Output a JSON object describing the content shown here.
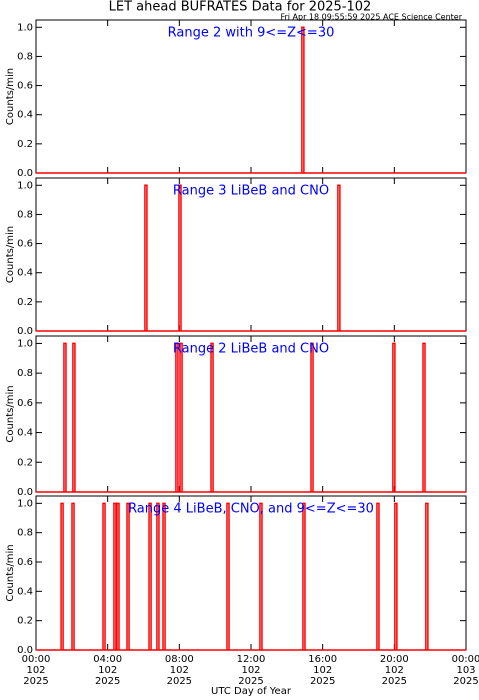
{
  "title": "LET ahead BUFRATES Data for 2025-102",
  "timestamp": "Fri Apr 18 09:55:59 2025 ACE Science Center",
  "x_label": "UTC Day of Year",
  "chart_data": [
    {
      "type": "spike",
      "title": "Range 2 with 9<=Z<=30",
      "y_label": "Counts/min",
      "color": "#ff0000",
      "x": [
        14.84
      ],
      "values": [
        1
      ],
      "xlim": [
        0,
        24
      ],
      "ylim": [
        0,
        1.05
      ],
      "yticks": [
        {
          "value": 0,
          "label": "0.0"
        },
        {
          "value": 0.2,
          "label": "0.2"
        },
        {
          "value": 0.4,
          "label": "0.4"
        },
        {
          "value": 0.6,
          "label": "0.6"
        },
        {
          "value": 0.8,
          "label": "0.8"
        },
        {
          "value": 1,
          "label": "1.0"
        }
      ]
    },
    {
      "type": "spike",
      "title": "Range 3 LiBeB and CNO",
      "y_label": "Counts/min",
      "color": "#ff0000",
      "x": [
        6.08,
        7.98,
        16.85
      ],
      "values": [
        1,
        1,
        1
      ],
      "xlim": [
        0,
        24
      ],
      "ylim": [
        0,
        1.05
      ],
      "yticks": [
        {
          "value": 0,
          "label": "0.0"
        },
        {
          "value": 0.2,
          "label": "0.2"
        },
        {
          "value": 0.4,
          "label": "0.4"
        },
        {
          "value": 0.6,
          "label": "0.6"
        },
        {
          "value": 0.8,
          "label": "0.8"
        },
        {
          "value": 1,
          "label": "1.0"
        }
      ]
    },
    {
      "type": "spike",
      "title": "Range 2 LiBeB and CNO",
      "y_label": "Counts/min",
      "color": "#ff0000",
      "x": [
        1.56,
        2.06,
        7.81,
        8.04,
        9.77,
        15.35,
        19.92,
        21.6
      ],
      "values": [
        1,
        1,
        1,
        1,
        1,
        1,
        1,
        1
      ],
      "xlim": [
        0,
        24
      ],
      "ylim": [
        0,
        1.05
      ],
      "yticks": [
        {
          "value": 0,
          "label": "0.0"
        },
        {
          "value": 0.2,
          "label": "0.2"
        },
        {
          "value": 0.4,
          "label": "0.4"
        },
        {
          "value": 0.6,
          "label": "0.6"
        },
        {
          "value": 0.8,
          "label": "0.8"
        },
        {
          "value": 1,
          "label": "1.0"
        }
      ]
    },
    {
      "type": "spike",
      "title": "Range 4 LiBeB, CNO, and 9<=Z<=30",
      "y_label": "Counts/min",
      "color": "#ff0000",
      "x": [
        1.4,
        2.01,
        3.74,
        4.35,
        4.52,
        5.08,
        6.31,
        6.75,
        7.09,
        10.66,
        12.5,
        14.9,
        19.03,
        20.03,
        21.76
      ],
      "values": [
        1,
        1,
        1,
        1,
        1,
        1,
        1,
        1,
        1,
        1,
        1,
        1,
        1,
        1,
        1
      ],
      "xlim": [
        0,
        24
      ],
      "ylim": [
        0,
        1.05
      ],
      "yticks": [
        {
          "value": 0,
          "label": "0.0"
        },
        {
          "value": 0.2,
          "label": "0.2"
        },
        {
          "value": 0.4,
          "label": "0.4"
        },
        {
          "value": 0.6,
          "label": "0.6"
        },
        {
          "value": 0.8,
          "label": "0.8"
        },
        {
          "value": 1,
          "label": "1.0"
        }
      ],
      "xticks": [
        {
          "value": 0,
          "label": "00:00"
        },
        {
          "value": 4,
          "label": "04:00"
        },
        {
          "value": 8,
          "label": "08:00"
        },
        {
          "value": 12,
          "label": "12:00"
        },
        {
          "value": 16,
          "label": "16:00"
        },
        {
          "value": 20,
          "label": "20:00"
        },
        {
          "value": 24,
          "label": "00:00"
        }
      ],
      "xtick_days": [
        "102",
        "102",
        "102",
        "102",
        "102",
        "102",
        "103"
      ],
      "xtick_years": [
        "2025",
        "2025",
        "2025",
        "2025",
        "2025",
        "2025",
        "2025"
      ]
    }
  ]
}
